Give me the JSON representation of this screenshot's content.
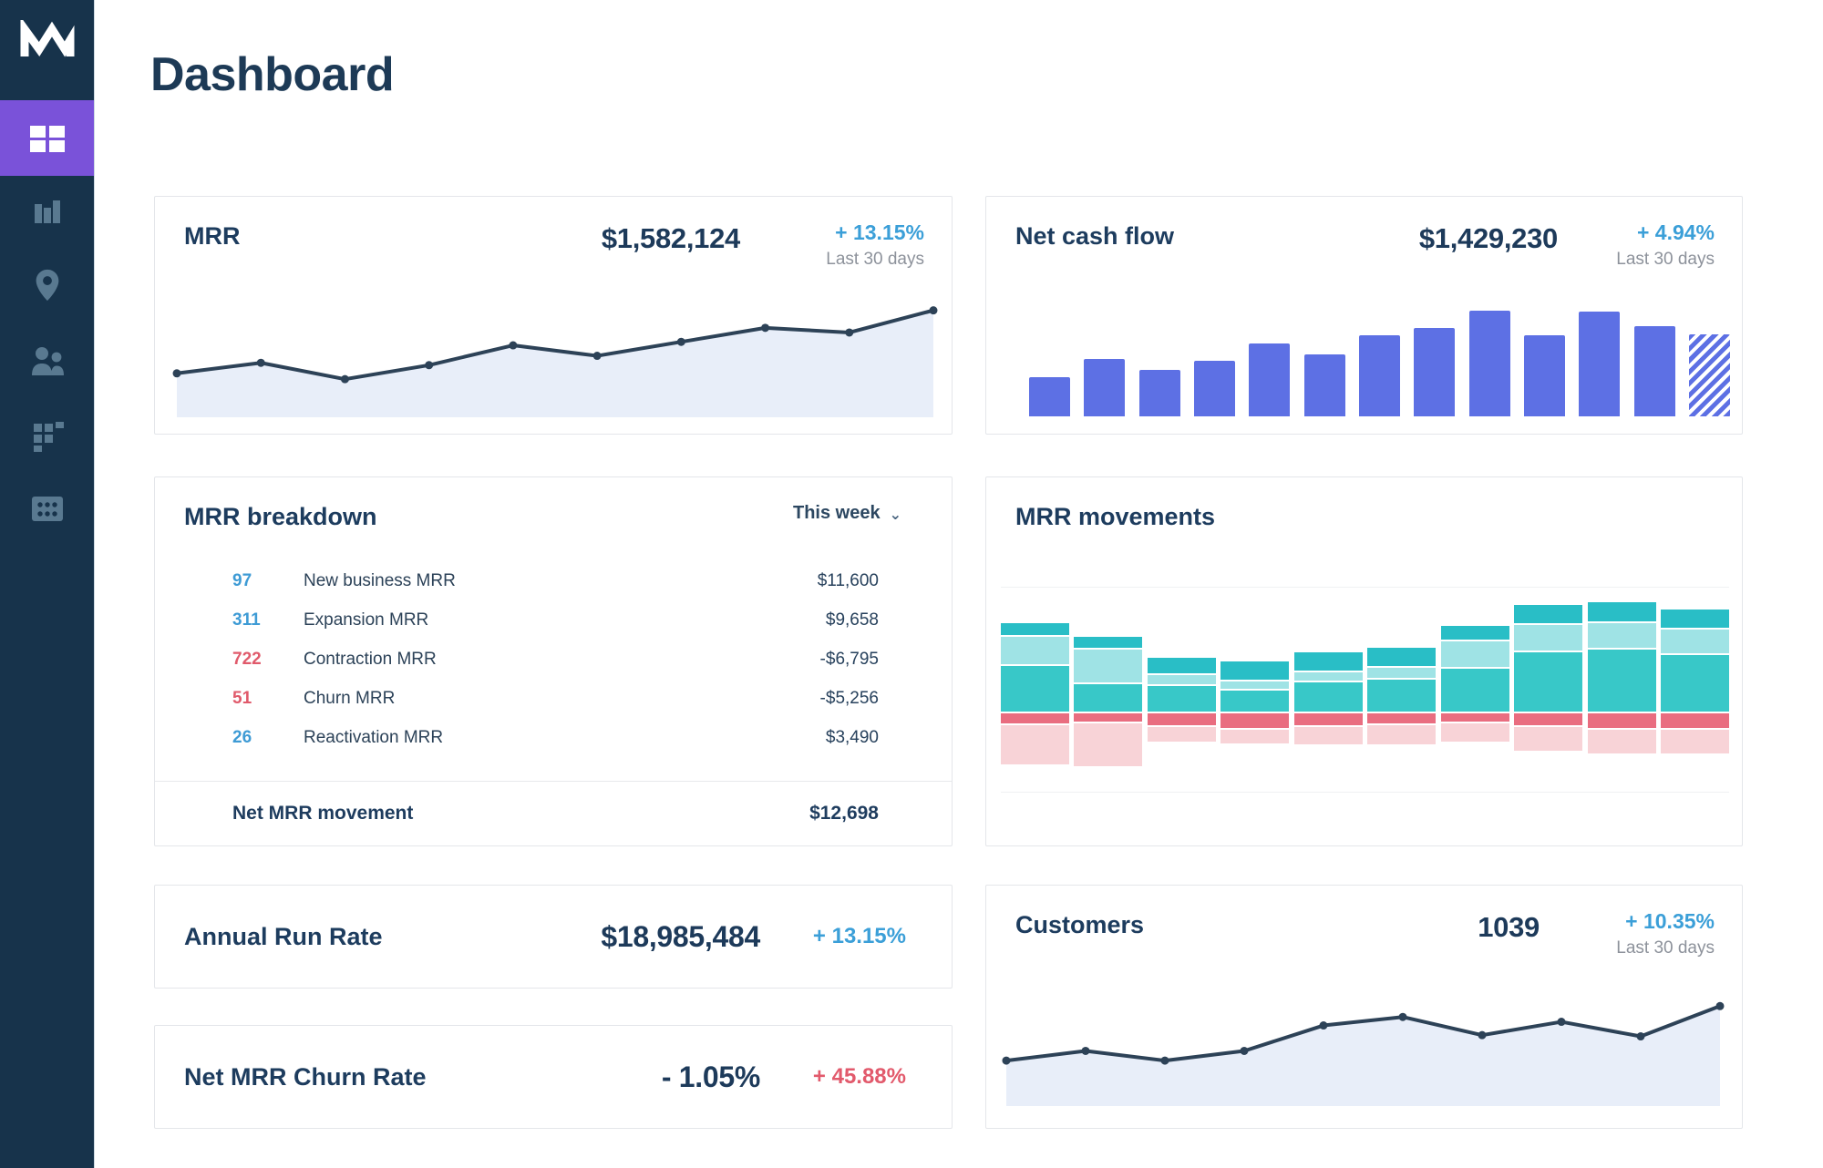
{
  "page_title": "Dashboard",
  "sidebar": {
    "logo_icon": "chartmogul-m-logo",
    "items": [
      {
        "icon": "dashboard-grid-icon",
        "active": true
      },
      {
        "icon": "bar-chart-icon",
        "active": false
      },
      {
        "icon": "location-pin-icon",
        "active": false
      },
      {
        "icon": "people-icon",
        "active": false
      },
      {
        "icon": "blocks-funnel-icon",
        "active": false
      },
      {
        "icon": "data-grid-icon",
        "active": false
      }
    ]
  },
  "cards": {
    "mrr": {
      "title": "MRR",
      "value": "$1,582,124",
      "change": "+ 13.15%",
      "period": "Last 30 days"
    },
    "net_cash_flow": {
      "title": "Net cash flow",
      "value": "$1,429,230",
      "change": "+ 4.94%",
      "period": "Last 30 days"
    },
    "mrr_breakdown": {
      "title": "MRR breakdown",
      "filter": "This week",
      "filter_chevron": "chevron-down-icon",
      "rows": [
        {
          "count": "97",
          "count_color": "blue",
          "label": "New business MRR",
          "value": "$11,600"
        },
        {
          "count": "311",
          "count_color": "blue",
          "label": "Expansion MRR",
          "value": "$9,658"
        },
        {
          "count": "722",
          "count_color": "red",
          "label": "Contraction MRR",
          "value": "-$6,795"
        },
        {
          "count": "51",
          "count_color": "red",
          "label": "Churn MRR",
          "value": "-$5,256"
        },
        {
          "count": "26",
          "count_color": "blue",
          "label": "Reactivation MRR",
          "value": "$3,490"
        }
      ],
      "total": {
        "label": "Net MRR movement",
        "value": "$12,698"
      }
    },
    "mrr_movements": {
      "title": "MRR movements"
    },
    "annual_run_rate": {
      "title": "Annual Run Rate",
      "value": "$18,985,484",
      "change": "+ 13.15%"
    },
    "net_mrr_churn_rate": {
      "title": "Net MRR Churn Rate",
      "value": "- 1.05%",
      "change": "+ 45.88%"
    },
    "customers": {
      "title": "Customers",
      "value": "1039",
      "change": "+ 10.35%",
      "period": "Last 30 days"
    }
  },
  "colors": {
    "sidebar_bg": "#17334b",
    "active_purple": "#7a52d9",
    "sidebar_icon": "#5d7d94",
    "navy_text": "#1e3c5e",
    "accent_blue_pct": "#3b9fd8",
    "negative_red_pct": "#e25a6c",
    "line_chart": "#2d4257",
    "line_fill": "#e8eef9",
    "bar_blue": "#5d70e4",
    "teal_top": "#29bec6",
    "teal_light": "#9fe3e5",
    "teal_dark": "#38c8c8",
    "movement_red": "#e96d80",
    "movement_pink": "#f8d3d7"
  },
  "chart_data": [
    {
      "id": "mrr_trend",
      "type": "area",
      "title": "MRR last 30 days trend (unlabeled sparkline)",
      "x": [
        1,
        2,
        3,
        4,
        5,
        6,
        7,
        8,
        9,
        10
      ],
      "values": [
        33,
        42,
        28,
        40,
        57,
        48,
        60,
        72,
        68,
        87
      ],
      "ylim": [
        0,
        100
      ],
      "unit": "relative (no axis labels shown)",
      "line_color": "#2d4257",
      "fill_color": "#e8eef9",
      "grid": false,
      "legend": "none"
    },
    {
      "id": "net_cash_flow",
      "type": "bar",
      "title": "Net cash flow last 30 days (unlabeled bars)",
      "categories": [
        1,
        2,
        3,
        4,
        5,
        6,
        7,
        8,
        9,
        10,
        11,
        12,
        13
      ],
      "values": [
        37,
        54,
        44,
        53,
        69,
        59,
        77,
        84,
        100,
        77,
        99,
        85,
        78
      ],
      "ylim": [
        0,
        100
      ],
      "unit": "relative (no axis labels shown)",
      "bar_color": "#5d70e4",
      "last_bar_style": "hatched-diagonal-stripes",
      "grid": false,
      "legend": "none"
    },
    {
      "id": "mrr_movements",
      "type": "stacked_bar",
      "title": "MRR movements (diverging stacked bars, no axis labels)",
      "categories": [
        1,
        2,
        3,
        4,
        5,
        6,
        7,
        8,
        9,
        10
      ],
      "series": [
        {
          "name": "teal-top-segment",
          "color": "#29bec6",
          "values": [
            13,
            12,
            17,
            20,
            20,
            20,
            15,
            20,
            21,
            20
          ]
        },
        {
          "name": "teal-light-segment",
          "color": "#9fe3e5",
          "values": [
            32,
            38,
            12,
            10,
            11,
            13,
            30,
            30,
            29,
            28
          ]
        },
        {
          "name": "teal-dark-segment",
          "color": "#38c8c8",
          "values": [
            52,
            32,
            30,
            25,
            34,
            37,
            49,
            67,
            70,
            64
          ]
        },
        {
          "name": "red-negative-segment",
          "color": "#e96d80",
          "values": [
            -13,
            -11,
            -15,
            -18,
            -15,
            -13,
            -11,
            -15,
            -18,
            -18
          ]
        },
        {
          "name": "pink-negative-segment",
          "color": "#f8d3d7",
          "values": [
            -45,
            -49,
            -18,
            -17,
            -21,
            -23,
            -22,
            -28,
            -28,
            -28
          ]
        }
      ],
      "baseline": 0,
      "unit": "relative px units read from pixels (no axis labels shown)",
      "grid": true,
      "legend": "none"
    },
    {
      "id": "customers_trend",
      "type": "area",
      "title": "Customers last 30 days trend (unlabeled sparkline)",
      "x": [
        1,
        2,
        3,
        4,
        5,
        6,
        7,
        8,
        9,
        10
      ],
      "values": [
        33,
        41,
        33,
        41,
        62,
        69,
        54,
        65,
        53,
        78
      ],
      "ylim": [
        0,
        100
      ],
      "unit": "relative (no axis labels shown)",
      "line_color": "#2d4257",
      "fill_color": "#e8eef9",
      "grid": false,
      "legend": "none"
    }
  ]
}
